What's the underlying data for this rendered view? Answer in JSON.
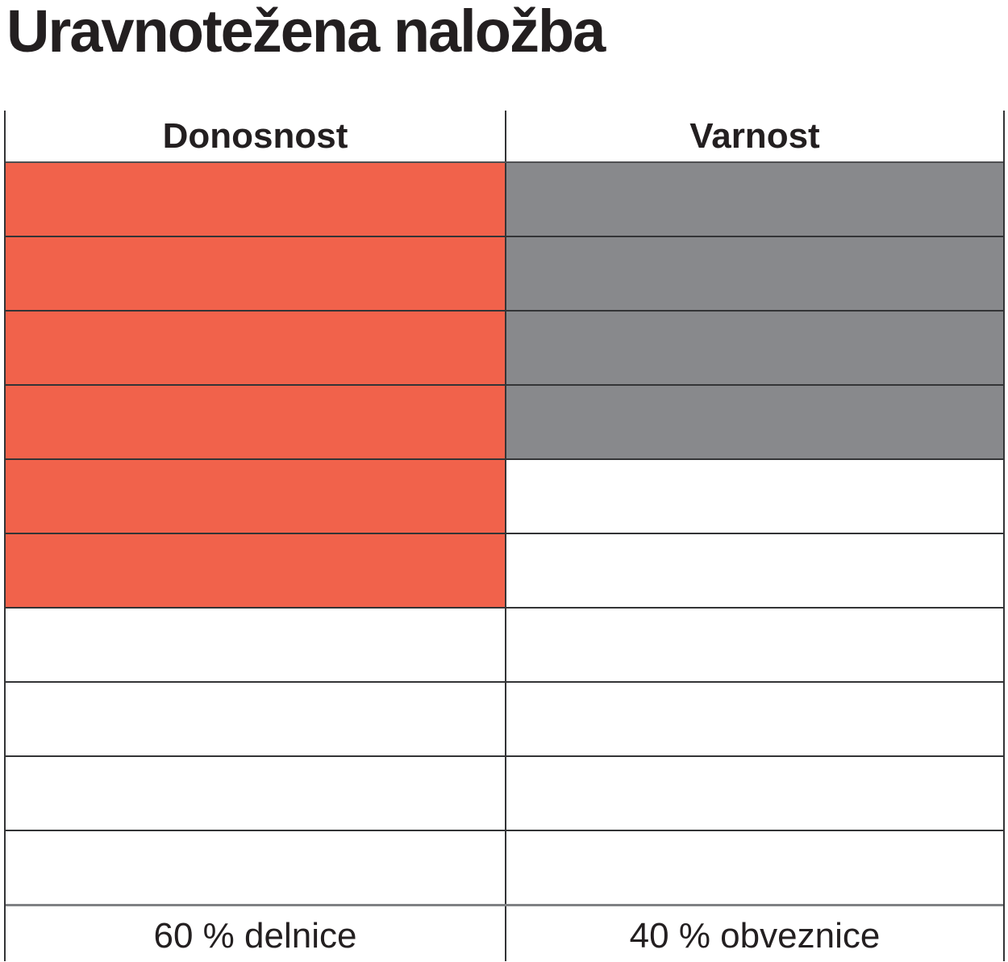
{
  "title": "Uravnotežena naložba",
  "chart_data": {
    "type": "bar",
    "subtype": "unit-column-pictograph",
    "title": "Uravnotežena naložba",
    "categories": [
      "Donosnost",
      "Varnost"
    ],
    "series": [
      {
        "name": "filled_units",
        "values": [
          6,
          4
        ]
      }
    ],
    "total_units_per_column": 10,
    "unit_value_percent": 10,
    "values_percent": [
      60,
      40
    ],
    "bar_colors": [
      "#F1624B",
      "#88898C"
    ],
    "empty_color": "#FFFFFF",
    "fill_direction": "top-down",
    "footer_labels": [
      "60 % delnice",
      "40 % obveznice"
    ],
    "legend_position": "none",
    "grid": true
  },
  "columns": [
    {
      "header": "Donosnost",
      "filled_units": 6,
      "fill_color": "#F1624B",
      "footer": "60 % delnice"
    },
    {
      "header": "Varnost",
      "filled_units": 4,
      "fill_color": "#88898C",
      "footer": "40 % obveznice"
    }
  ]
}
